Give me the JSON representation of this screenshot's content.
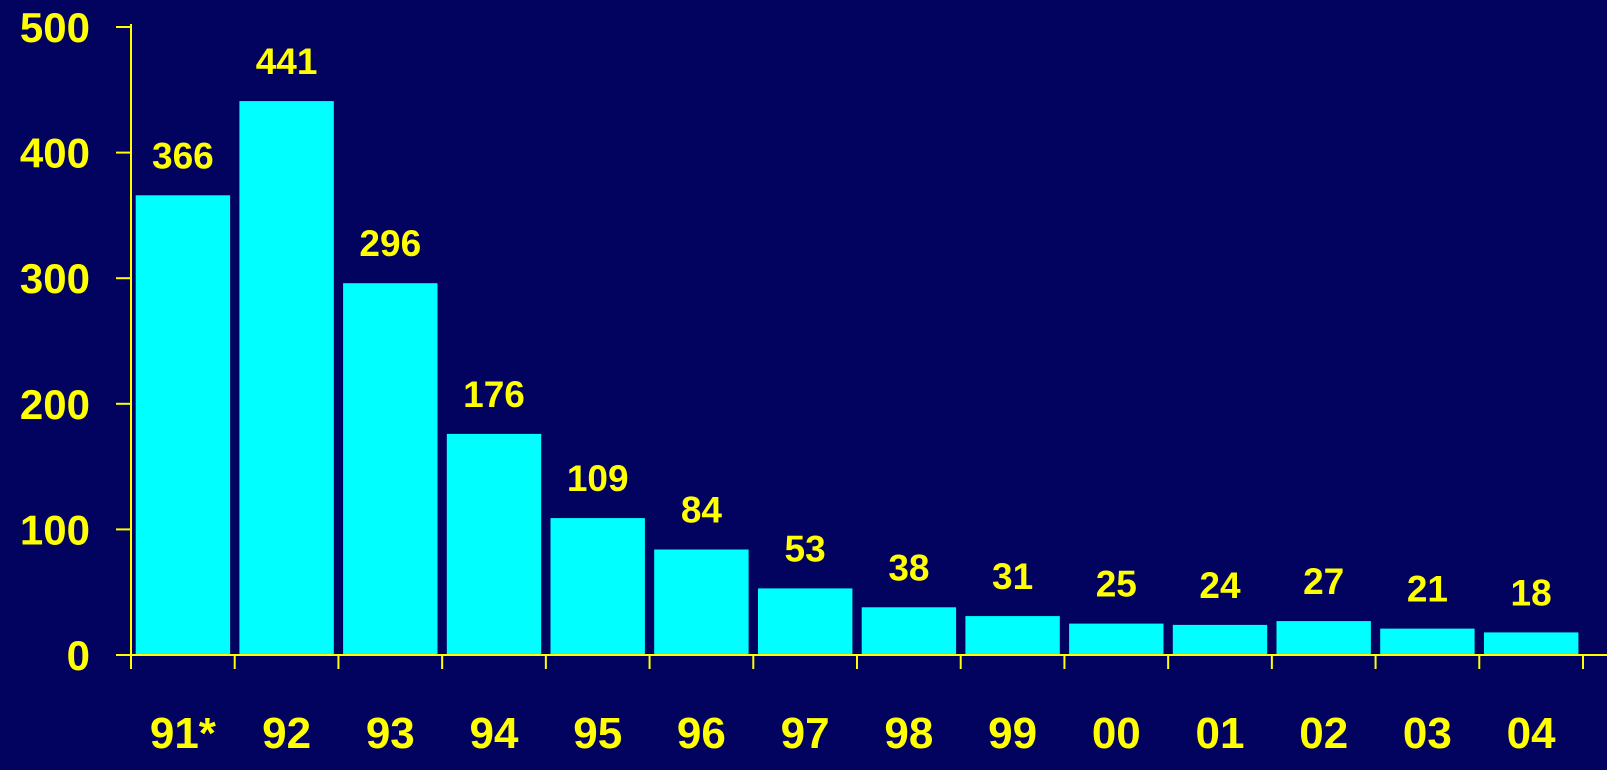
{
  "chart_data": {
    "type": "bar",
    "title": "",
    "xlabel": "",
    "ylabel": "",
    "categories": [
      "91*",
      "92",
      "93",
      "94",
      "95",
      "96",
      "97",
      "98",
      "99",
      "00",
      "01",
      "02",
      "03",
      "04"
    ],
    "series": [
      {
        "values": [
          366,
          441,
          296,
          176,
          109,
          84,
          53,
          38,
          31,
          25,
          24,
          27,
          21,
          18
        ]
      }
    ],
    "ylim": [
      0,
      500
    ],
    "yticks": [
      0,
      100,
      200,
      300,
      400,
      500
    ],
    "ytick_labels": [
      "0",
      "100",
      "200",
      "300",
      "400",
      "500"
    ],
    "data_labels": [
      "366",
      "441",
      "296",
      "176",
      "109",
      "84",
      "53",
      "38",
      "31",
      "25",
      "24",
      "27",
      "21",
      "18"
    ],
    "grid": false,
    "legend": "none",
    "colors": {
      "background": "#02035e",
      "bar": "#00ffff",
      "text": "#ffff00",
      "axis": "#ffff00"
    }
  }
}
